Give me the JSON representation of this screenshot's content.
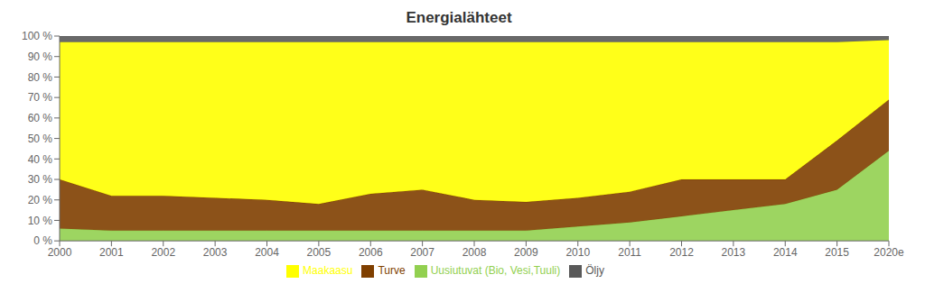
{
  "chart_data": {
    "type": "area",
    "title": "Energialähteet",
    "stacked": true,
    "categories": [
      "2000",
      "2001",
      "2002",
      "2003",
      "2004",
      "2005",
      "2006",
      "2007",
      "2008",
      "2009",
      "2010",
      "2011",
      "2012",
      "2013",
      "2014",
      "2015",
      "2020e"
    ],
    "series": [
      {
        "name": "Uusiutuvat (Bio, Vesi,Tuuli)",
        "color": "#92D050",
        "values": [
          6,
          5,
          5,
          5,
          5,
          5,
          5,
          5,
          5,
          5,
          7,
          9,
          12,
          15,
          18,
          25,
          44
        ]
      },
      {
        "name": "Turve",
        "color": "#7F3F00",
        "values": [
          24,
          17,
          17,
          16,
          15,
          13,
          18,
          20,
          15,
          14,
          14,
          15,
          18,
          15,
          12,
          24,
          25
        ]
      },
      {
        "name": "Maakaasu",
        "color": "#FFFF00",
        "values": [
          67,
          75,
          75,
          76,
          77,
          79,
          74,
          72,
          77,
          78,
          76,
          73,
          67,
          67,
          67,
          48,
          29
        ]
      },
      {
        "name": "Öljy",
        "color": "#595959",
        "values": [
          3,
          3,
          3,
          3,
          3,
          3,
          3,
          3,
          3,
          3,
          3,
          3,
          3,
          3,
          3,
          3,
          2
        ]
      }
    ],
    "ylim": [
      0,
      100
    ],
    "yticks": [
      {
        "value": 0,
        "label": "0 %"
      },
      {
        "value": 10,
        "label": "10 %"
      },
      {
        "value": 20,
        "label": "20 %"
      },
      {
        "value": 30,
        "label": "30 %"
      },
      {
        "value": 40,
        "label": "40 %"
      },
      {
        "value": 50,
        "label": "50 %"
      },
      {
        "value": 60,
        "label": "60 %"
      },
      {
        "value": 70,
        "label": "70 %"
      },
      {
        "value": 80,
        "label": "80 %"
      },
      {
        "value": 90,
        "label": "90 %"
      },
      {
        "value": 100,
        "label": "100 %"
      }
    ],
    "grid": false,
    "legend": "bottom"
  }
}
